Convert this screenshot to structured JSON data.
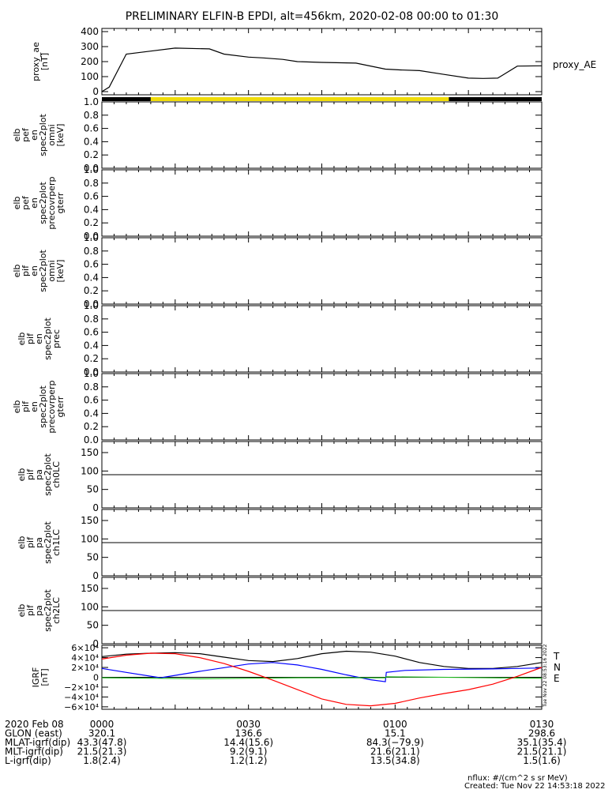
{
  "title": "PRELIMINARY ELFIN-B EPDI, alt=456km, 2020-02-08 00:00 to 01:30",
  "chart_data": [
    {
      "type": "line",
      "name": "proxy_ae",
      "ylabel": [
        "proxy_ae",
        "[nT]"
      ],
      "right_label": "proxy_AE",
      "ylim": [
        0,
        400
      ],
      "yticks": [
        "0",
        "100",
        "200",
        "300",
        "400"
      ],
      "x_minutes": [
        0,
        1.5,
        5,
        10,
        15,
        22,
        25,
        30,
        33,
        37,
        40,
        45,
        52,
        58,
        61,
        65,
        70,
        75,
        78,
        81,
        85,
        90
      ],
      "values": [
        0,
        30,
        250,
        270,
        290,
        285,
        250,
        230,
        225,
        215,
        200,
        195,
        190,
        150,
        145,
        140,
        115,
        90,
        88,
        90,
        170,
        172
      ]
    },
    {
      "type": "bar",
      "name": "science_zone_bar",
      "segments": [
        {
          "start_min": 0,
          "end_min": 10,
          "color": "#000000"
        },
        {
          "start_min": 10,
          "end_min": 71,
          "color": "#f0dc0a"
        },
        {
          "start_min": 71,
          "end_min": 90,
          "color": "#000000"
        }
      ]
    },
    {
      "type": "line",
      "name": "elb_pef_en_spec2plot_omni",
      "ylabel": [
        "elb",
        "pef",
        "en",
        "spec2plot",
        "omni",
        "[keV]"
      ],
      "ylim": [
        0,
        1
      ],
      "yticks": [
        "0.0",
        "0.2",
        "0.4",
        "0.6",
        "0.8",
        "1.0"
      ]
    },
    {
      "type": "line",
      "name": "elb_pef_en_spec2plot_precovrperp_gterr",
      "ylabel": [
        "elb",
        "pef",
        "en",
        "spec2plot",
        "precovrperp",
        "gterr"
      ],
      "ylim": [
        0,
        1
      ],
      "yticks": [
        "0.0",
        "0.2",
        "0.4",
        "0.6",
        "0.8",
        "1.0"
      ]
    },
    {
      "type": "line",
      "name": "elb_pif_en_spec2plot_omni",
      "ylabel": [
        "elb",
        "pif",
        "en",
        "spec2plot",
        "omni",
        "[keV]"
      ],
      "ylim": [
        0,
        1
      ],
      "yticks": [
        "0.0",
        "0.2",
        "0.4",
        "0.6",
        "0.8",
        "1.0"
      ]
    },
    {
      "type": "line",
      "name": "elb_pif_en_spec2plot_prec",
      "ylabel": [
        "elb",
        "pif",
        "en",
        "spec2plot",
        "prec"
      ],
      "ylim": [
        0,
        1
      ],
      "yticks": [
        "0.0",
        "0.2",
        "0.4",
        "0.6",
        "0.8",
        "1.0"
      ]
    },
    {
      "type": "line",
      "name": "elb_pif_en_spec2plot_precovrperp_gterr",
      "ylabel": [
        "elb",
        "pif",
        "en",
        "spec2plot",
        "precovrperp",
        "gterr"
      ],
      "ylim": [
        0,
        1
      ],
      "yticks": [
        "0.0",
        "0.2",
        "0.4",
        "0.6",
        "0.8",
        "1.0"
      ]
    },
    {
      "type": "line",
      "name": "elb_pif_pa_spec2plot_ch0LC",
      "ylabel": [
        "elb",
        "pif",
        "pa",
        "spec2plot",
        "ch0LC"
      ],
      "ylim": [
        0,
        180
      ],
      "yticks": [
        "0",
        "50",
        "100",
        "150"
      ],
      "hline": 90
    },
    {
      "type": "line",
      "name": "elb_pif_pa_spec2plot_ch1LC",
      "ylabel": [
        "elb",
        "pif",
        "pa",
        "spec2plot",
        "ch1LC"
      ],
      "ylim": [
        0,
        180
      ],
      "yticks": [
        "0",
        "50",
        "100",
        "150"
      ],
      "hline": 90
    },
    {
      "type": "line",
      "name": "elb_pif_pa_spec2plot_ch2LC",
      "ylabel": [
        "elb",
        "pif",
        "pa",
        "spec2plot",
        "ch2LC"
      ],
      "ylim": [
        0,
        180
      ],
      "yticks": [
        "0",
        "50",
        "100",
        "150"
      ],
      "hline": 90
    },
    {
      "type": "line",
      "name": "IGRF",
      "ylabel": [
        "IGRF",
        "[nT]"
      ],
      "ylim": [
        -65000,
        65000
      ],
      "ytick_values": [
        60000,
        40000,
        20000,
        0,
        -20000,
        -40000,
        -60000
      ],
      "ytick_labels": [
        "6×10⁴",
        "4×10⁴",
        "2×10⁴",
        "0",
        "−2×10⁴",
        "−4×10⁴",
        "−6×10⁴"
      ],
      "legend": [
        "T",
        "N",
        "E"
      ],
      "side_stamp": "Tue Nov 22 08:53:16 2022",
      "series": [
        {
          "name": "T",
          "color": "#000000",
          "x_minutes": [
            0,
            5,
            10,
            15,
            20,
            25,
            30,
            35,
            40,
            45,
            50,
            55,
            60,
            65,
            70,
            75,
            80,
            85,
            90
          ],
          "values": [
            42000,
            47000,
            49000,
            50000,
            48000,
            41000,
            34000,
            32000,
            38000,
            48000,
            53000,
            51000,
            43000,
            30000,
            22000,
            18000,
            18000,
            22000,
            30000
          ]
        },
        {
          "name": "N",
          "color": "#0000ff",
          "x_minutes": [
            0,
            5,
            12,
            20,
            30,
            35,
            40,
            45,
            50,
            55,
            58,
            58.2,
            62,
            70,
            80,
            90
          ],
          "values": [
            18000,
            10000,
            -1000,
            12000,
            27000,
            30000,
            25000,
            16000,
            5000,
            -5000,
            -9000,
            10000,
            14000,
            16000,
            17000,
            19000
          ]
        },
        {
          "name": "E",
          "color": "#22bb22",
          "x_minutes": [
            0,
            10,
            20,
            30,
            40,
            50,
            55,
            58,
            58.2,
            65,
            75,
            85,
            90
          ],
          "values": [
            -1000,
            -2000,
            -3000,
            -2000,
            -1000,
            -1000,
            -1000,
            -1000,
            1000,
            500,
            -500,
            -1500,
            -2000
          ]
        },
        {
          "name": "red",
          "color": "#ff0000",
          "x_minutes": [
            0,
            5,
            10,
            15,
            20,
            25,
            30,
            35,
            40,
            45,
            50,
            55,
            60,
            65,
            70,
            75,
            80,
            85,
            90
          ],
          "values": [
            37000,
            45000,
            49000,
            48000,
            40000,
            28000,
            12000,
            -6000,
            -25000,
            -44000,
            -55000,
            -58000,
            -53000,
            -42000,
            -33000,
            -25000,
            -14000,
            2000,
            20000
          ]
        }
      ]
    }
  ],
  "time_axis": {
    "ticks_minutes": [
      0,
      30,
      60,
      90
    ],
    "rows": [
      {
        "label": "2020 Feb 08",
        "values": [
          "0000",
          "0030",
          "0100",
          "0130"
        ]
      },
      {
        "label": "GLON (east)",
        "values": [
          "320.1",
          "136.6",
          "15.1",
          "298.6"
        ]
      },
      {
        "label": "MLAT-igrf(dip)",
        "values": [
          "43.3(47.8)",
          "14.4(15.6)",
          "84.3(−79.9)",
          "35.1(35.4)"
        ]
      },
      {
        "label": "MLT-igrf(dip)",
        "values": [
          "21.5(21.3)",
          "9.2(9.1)",
          "21.6(21.1)",
          "21.5(21.1)"
        ]
      },
      {
        "label": "L-igrf(dip)",
        "values": [
          "1.8(2.4)",
          "1.2(1.2)",
          "13.5(34.8)",
          "1.5(1.6)"
        ]
      }
    ]
  },
  "footer": {
    "units": "nflux: #/(cm^2 s sr MeV)",
    "created": "Created: Tue Nov 22 14:53:18 2022"
  }
}
